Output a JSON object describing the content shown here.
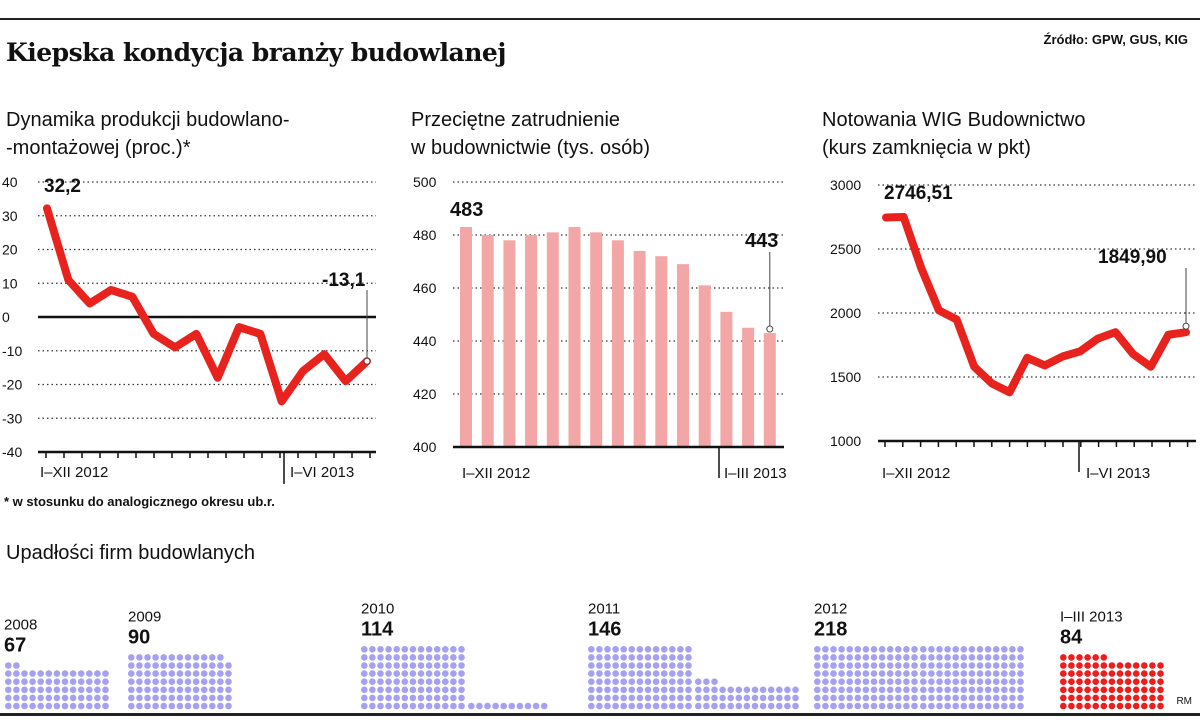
{
  "title": "Kiepska kondycja branży budowlanej",
  "source": "Źródło: GPW, GUS, KIG",
  "footnote": "* w stosunku do analogicznego okresu ub.r.",
  "credit": "RM",
  "colors": {
    "line": "#e8221d",
    "bars": "#f2a6a6",
    "dots": "#a6a0f0",
    "dots_highlight": "#ee1c1c"
  },
  "charts": [
    {
      "title_lines": [
        "Dynamika produkcji budowlano-",
        "-montażowej (proc.)*"
      ],
      "chart_data": {
        "type": "line",
        "xlabel": "",
        "ylabel": "",
        "x_labels": [
          "I–XII 2012",
          "I–VI 2013"
        ],
        "yticks": [
          "40",
          "30",
          "20",
          "10",
          "0",
          "-10",
          "-20",
          "-30",
          "-40"
        ],
        "ylim": [
          -40,
          40
        ],
        "series": [
          {
            "values": [
              32.2,
              11,
              4,
              8,
              6,
              -5,
              -9,
              -5,
              -18,
              -3,
              -5,
              -25,
              -16,
              -11,
              -19,
              -13.1
            ]
          }
        ],
        "annotations": [
          "32,2",
          "-13,1"
        ]
      }
    },
    {
      "title_lines": [
        "Przeciętne zatrudnienie",
        "w budownictwie (tys. osób)"
      ],
      "chart_data": {
        "type": "bar",
        "xlabel": "",
        "ylabel": "",
        "x_labels": [
          "I–XII 2012",
          "I–III 2013"
        ],
        "yticks": [
          "500",
          "480",
          "460",
          "440",
          "420",
          "400"
        ],
        "ylim": [
          400,
          500
        ],
        "values": [
          483,
          480,
          478,
          480,
          481,
          483,
          481,
          478,
          474,
          472,
          469,
          461,
          451,
          445,
          443
        ],
        "annotations": [
          "483",
          "443"
        ]
      }
    },
    {
      "title_lines": [
        "Notowania WIG Budownictwo",
        "(kurs zamknięcia w pkt)"
      ],
      "chart_data": {
        "type": "line",
        "xlabel": "",
        "ylabel": "",
        "x_labels": [
          "I–XII 2012",
          "I–VI 2013"
        ],
        "yticks": [
          "3000",
          "2500",
          "2000",
          "1500",
          "1000"
        ],
        "ylim": [
          1000,
          3000
        ],
        "series": [
          {
            "values": [
              2746.51,
              2750,
              2350,
              2020,
              1950,
              1580,
              1450,
              1380,
              1650,
              1590,
              1660,
              1700,
              1800,
              1850,
              1680,
              1580,
              1830,
              1849.9
            ]
          }
        ],
        "annotations": [
          "2746,51",
          "1849,90"
        ]
      }
    }
  ],
  "insolvencies": {
    "title": "Upadłości firm budowlanych",
    "chart_data": {
      "type": "bar",
      "xlabel": "",
      "ylabel": "",
      "categories": [
        "2008",
        "2009",
        "2010",
        "2011",
        "2012",
        "I–III 2013"
      ],
      "values": [
        67,
        90,
        114,
        146,
        218,
        84
      ],
      "labels": [
        "67",
        "90",
        "114",
        "146",
        "218",
        "84"
      ]
    }
  }
}
